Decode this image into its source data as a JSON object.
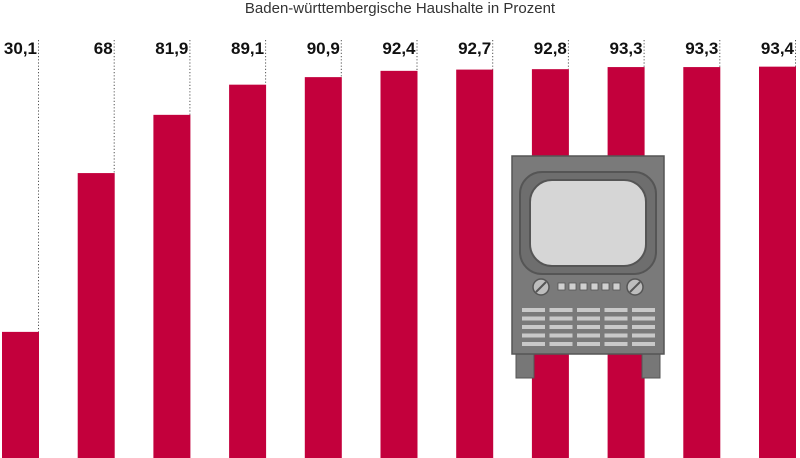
{
  "chart_data": {
    "type": "bar",
    "subtitle": "Baden-württembergische Haushalte in Prozent",
    "values": [
      30.1,
      68,
      81.9,
      89.1,
      90.9,
      92.4,
      92.7,
      92.8,
      93.3,
      93.3,
      93.4
    ],
    "value_labels": [
      "30,1",
      "68",
      "81,9",
      "89,1",
      "90,9",
      "92,4",
      "92,7",
      "92,8",
      "93,3",
      "93,3",
      "93,4"
    ],
    "ylim": [
      0,
      100
    ],
    "grid": false,
    "colors": {
      "bar": "#c3003c",
      "tv_body": "#777777",
      "tv_screen": "#d6d6d6",
      "tv_outline": "#555555"
    },
    "illustration": "tv-icon"
  }
}
